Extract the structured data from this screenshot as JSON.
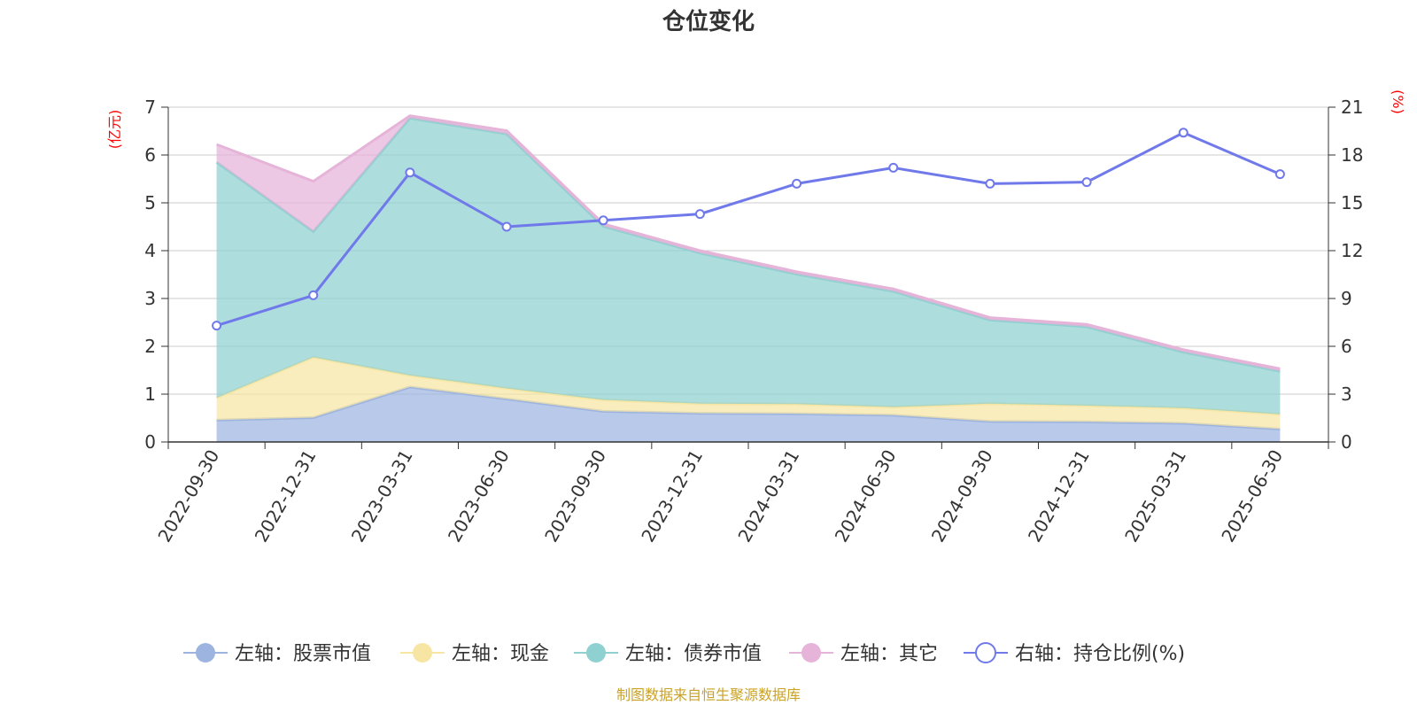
{
  "chart_data": {
    "type": "area",
    "title": "仓位变化",
    "left_unit": "(亿元)",
    "right_unit": "(%)",
    "x": [
      "2022-09-30",
      "2022-12-31",
      "2023-03-31",
      "2023-06-30",
      "2023-09-30",
      "2023-12-31",
      "2024-03-31",
      "2024-06-30",
      "2024-09-30",
      "2024-12-31",
      "2025-03-31",
      "2025-06-30"
    ],
    "left_ylim": [
      0,
      7
    ],
    "left_ticks": [
      0,
      1,
      2,
      3,
      4,
      5,
      6,
      7
    ],
    "right_ylim": [
      0,
      21
    ],
    "right_ticks": [
      0,
      3,
      6,
      9,
      12,
      15,
      18,
      21
    ],
    "stacked": true,
    "grid": true,
    "legend_position": "bottom",
    "series": [
      {
        "name": "左轴：股票市值",
        "axis": "left",
        "color": "#9db4e0",
        "values": [
          0.46,
          0.51,
          1.15,
          0.9,
          0.64,
          0.6,
          0.59,
          0.56,
          0.43,
          0.42,
          0.39,
          0.27
        ]
      },
      {
        "name": "左轴：现金",
        "axis": "left",
        "color": "#f7e6a3",
        "values": [
          0.46,
          1.26,
          0.24,
          0.22,
          0.24,
          0.2,
          0.2,
          0.17,
          0.37,
          0.34,
          0.32,
          0.31
        ]
      },
      {
        "name": "左轴：债券市值",
        "axis": "left",
        "color": "#8fd0d0",
        "values": [
          4.93,
          2.63,
          5.38,
          5.32,
          3.63,
          3.15,
          2.72,
          2.42,
          1.75,
          1.65,
          1.17,
          0.9
        ]
      },
      {
        "name": "左轴：其它",
        "axis": "left",
        "color": "#e6b3d9",
        "values": [
          0.37,
          1.05,
          0.05,
          0.07,
          0.05,
          0.05,
          0.05,
          0.05,
          0.05,
          0.05,
          0.05,
          0.05
        ]
      },
      {
        "name": "右轴：持仓比例(%)",
        "axis": "right",
        "color": "#7079ea",
        "type": "line",
        "values": [
          7.3,
          9.2,
          16.9,
          13.5,
          13.9,
          14.3,
          16.2,
          17.2,
          16.2,
          16.3,
          19.4,
          16.8
        ]
      }
    ]
  },
  "source_note": "制图数据来自恒生聚源数据库"
}
